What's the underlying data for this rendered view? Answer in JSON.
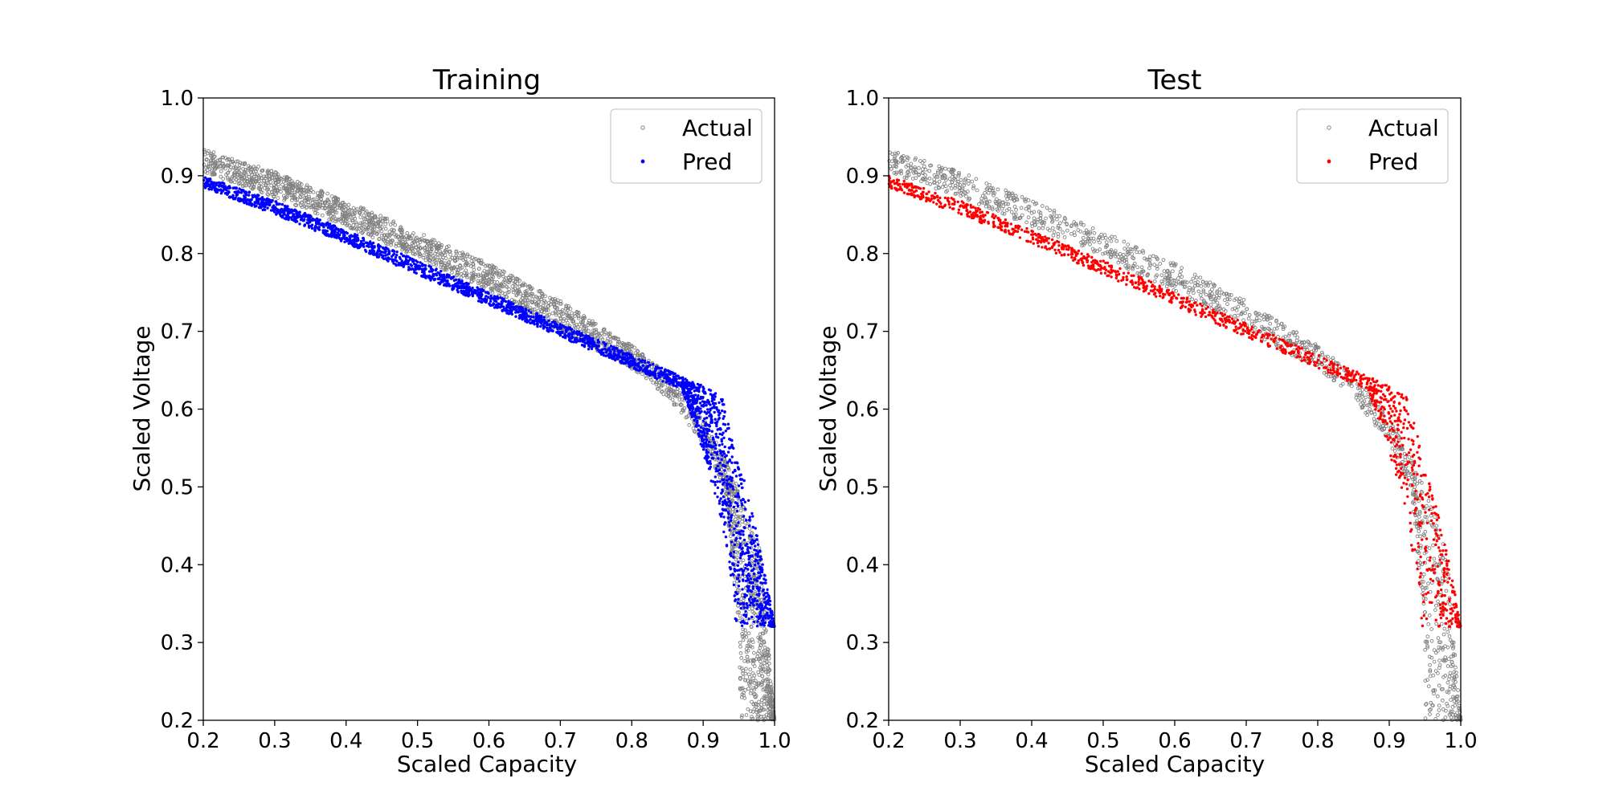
{
  "figure": {
    "background": "#ffffff",
    "actual_color": "#808080"
  },
  "chart_data": [
    {
      "type": "scatter",
      "title": "Training",
      "xlabel": "Scaled Capacity",
      "ylabel": "Scaled Voltage",
      "xlim": [
        0.2,
        1.0
      ],
      "ylim": [
        0.2,
        1.0
      ],
      "xticks": [
        "0.2",
        "0.3",
        "0.4",
        "0.5",
        "0.6",
        "0.7",
        "0.8",
        "0.9",
        "1.0"
      ],
      "yticks": [
        "0.2",
        "0.3",
        "0.4",
        "0.5",
        "0.6",
        "0.7",
        "0.8",
        "0.9",
        "1.0"
      ],
      "grid": false,
      "legend_position": "top-right",
      "series": [
        {
          "name": "Actual",
          "color": "#808080",
          "marker": "hollow-circle",
          "envelope_upper": [
            [
              0.2,
              0.935
            ],
            [
              0.3,
              0.905
            ],
            [
              0.4,
              0.868
            ],
            [
              0.5,
              0.828
            ],
            [
              0.6,
              0.787
            ],
            [
              0.7,
              0.739
            ],
            [
              0.8,
              0.682
            ],
            [
              0.85,
              0.645
            ],
            [
              0.9,
              0.59
            ],
            [
              0.95,
              0.5
            ],
            [
              0.98,
              0.42
            ],
            [
              1.0,
              0.2
            ]
          ],
          "envelope_lower": [
            [
              0.2,
              0.905
            ],
            [
              0.3,
              0.872
            ],
            [
              0.4,
              0.835
            ],
            [
              0.5,
              0.795
            ],
            [
              0.6,
              0.752
            ],
            [
              0.7,
              0.7
            ],
            [
              0.8,
              0.652
            ],
            [
              0.85,
              0.615
            ],
            [
              0.9,
              0.555
            ],
            [
              0.93,
              0.5
            ],
            [
              0.95,
              0.32
            ],
            [
              0.955,
              0.2
            ]
          ]
        },
        {
          "name": "Pred",
          "color": "#0000ff",
          "marker": "dot",
          "envelope_upper": [
            [
              0.2,
              0.9
            ],
            [
              0.3,
              0.868
            ],
            [
              0.4,
              0.83
            ],
            [
              0.5,
              0.791
            ],
            [
              0.6,
              0.75
            ],
            [
              0.7,
              0.71
            ],
            [
              0.8,
              0.67
            ],
            [
              0.88,
              0.638
            ],
            [
              0.925,
              0.62
            ],
            [
              0.96,
              0.5
            ],
            [
              0.985,
              0.4
            ],
            [
              1.0,
              0.32
            ]
          ],
          "envelope_lower": [
            [
              0.2,
              0.885
            ],
            [
              0.3,
              0.85
            ],
            [
              0.4,
              0.813
            ],
            [
              0.5,
              0.773
            ],
            [
              0.6,
              0.733
            ],
            [
              0.7,
              0.693
            ],
            [
              0.8,
              0.653
            ],
            [
              0.87,
              0.625
            ],
            [
              0.89,
              0.575
            ],
            [
              0.92,
              0.48
            ],
            [
              0.94,
              0.38
            ],
            [
              0.95,
              0.32
            ]
          ],
          "floor": 0.32
        }
      ]
    },
    {
      "type": "scatter",
      "title": "Test",
      "xlabel": "Scaled Capacity",
      "ylabel": "Scaled Voltage",
      "xlim": [
        0.2,
        1.0
      ],
      "ylim": [
        0.2,
        1.0
      ],
      "xticks": [
        "0.2",
        "0.3",
        "0.4",
        "0.5",
        "0.6",
        "0.7",
        "0.8",
        "0.9",
        "1.0"
      ],
      "yticks": [
        "0.2",
        "0.3",
        "0.4",
        "0.5",
        "0.6",
        "0.7",
        "0.8",
        "0.9",
        "1.0"
      ],
      "grid": false,
      "legend_position": "top-right",
      "series": [
        {
          "name": "Actual",
          "color": "#808080",
          "marker": "hollow-circle",
          "envelope_upper": [
            [
              0.2,
              0.935
            ],
            [
              0.3,
              0.905
            ],
            [
              0.4,
              0.868
            ],
            [
              0.5,
              0.828
            ],
            [
              0.6,
              0.787
            ],
            [
              0.7,
              0.739
            ],
            [
              0.8,
              0.682
            ],
            [
              0.85,
              0.645
            ],
            [
              0.9,
              0.59
            ],
            [
              0.95,
              0.5
            ],
            [
              0.98,
              0.42
            ],
            [
              1.0,
              0.2
            ]
          ],
          "envelope_lower": [
            [
              0.2,
              0.905
            ],
            [
              0.3,
              0.872
            ],
            [
              0.4,
              0.835
            ],
            [
              0.5,
              0.795
            ],
            [
              0.6,
              0.752
            ],
            [
              0.7,
              0.7
            ],
            [
              0.8,
              0.652
            ],
            [
              0.85,
              0.615
            ],
            [
              0.9,
              0.555
            ],
            [
              0.93,
              0.5
            ],
            [
              0.95,
              0.32
            ],
            [
              0.955,
              0.2
            ]
          ]
        },
        {
          "name": "Pred",
          "color": "#ff0000",
          "marker": "dot",
          "envelope_upper": [
            [
              0.2,
              0.9
            ],
            [
              0.3,
              0.868
            ],
            [
              0.4,
              0.83
            ],
            [
              0.5,
              0.791
            ],
            [
              0.6,
              0.75
            ],
            [
              0.7,
              0.71
            ],
            [
              0.8,
              0.67
            ],
            [
              0.88,
              0.638
            ],
            [
              0.925,
              0.62
            ],
            [
              0.96,
              0.5
            ],
            [
              0.985,
              0.4
            ],
            [
              1.0,
              0.32
            ]
          ],
          "envelope_lower": [
            [
              0.2,
              0.885
            ],
            [
              0.3,
              0.85
            ],
            [
              0.4,
              0.813
            ],
            [
              0.5,
              0.773
            ],
            [
              0.6,
              0.733
            ],
            [
              0.7,
              0.693
            ],
            [
              0.8,
              0.653
            ],
            [
              0.87,
              0.625
            ],
            [
              0.89,
              0.575
            ],
            [
              0.92,
              0.48
            ],
            [
              0.94,
              0.38
            ],
            [
              0.95,
              0.32
            ]
          ],
          "floor": 0.32
        }
      ]
    }
  ]
}
